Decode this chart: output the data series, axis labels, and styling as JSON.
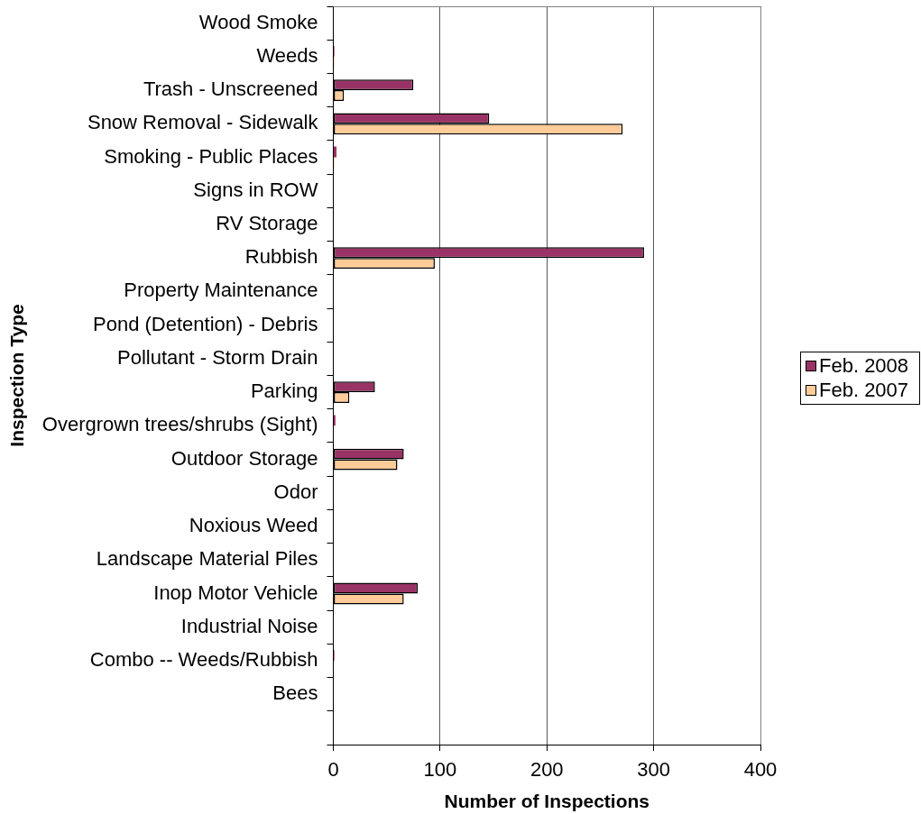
{
  "chart_data": {
    "type": "bar",
    "orientation": "horizontal",
    "xlabel": "Number of Inspections",
    "ylabel": "Inspection Type",
    "categories": [
      "Wood Smoke",
      "Weeds",
      "Trash - Unscreened",
      "Snow Removal - Sidewalk",
      "Smoking - Public Places",
      "Signs in ROW",
      "RV Storage",
      "Rubbish",
      "Property Maintenance",
      "Pond (Detention) - Debris",
      "Pollutant - Storm Drain",
      "Parking",
      "Overgrown trees/shrubs (Sight)",
      "Outdoor Storage",
      "Odor",
      "Noxious Weed",
      "Landscape Material Piles",
      "Inop Motor Vehicle",
      "Industrial Noise",
      "Combo -- Weeds/Rubbish",
      "Bees",
      null
    ],
    "series": [
      {
        "name": "Feb. 2008",
        "color": "#993366",
        "values": [
          0,
          1,
          75,
          146,
          3,
          0,
          0,
          291,
          0,
          0,
          0,
          39,
          2,
          66,
          0,
          0,
          0,
          79,
          0,
          1,
          0,
          null
        ]
      },
      {
        "name": "Feb. 2007",
        "color": "#ffcc99",
        "values": [
          0,
          1,
          10,
          271,
          1,
          0,
          0,
          95,
          0,
          0,
          0,
          15,
          0,
          60,
          0,
          0,
          0,
          66,
          0,
          0,
          0,
          null
        ]
      }
    ],
    "xlim": [
      0,
      400
    ],
    "xticks": [
      0,
      100,
      200,
      300,
      400
    ],
    "grid": "x",
    "legend": "right"
  }
}
